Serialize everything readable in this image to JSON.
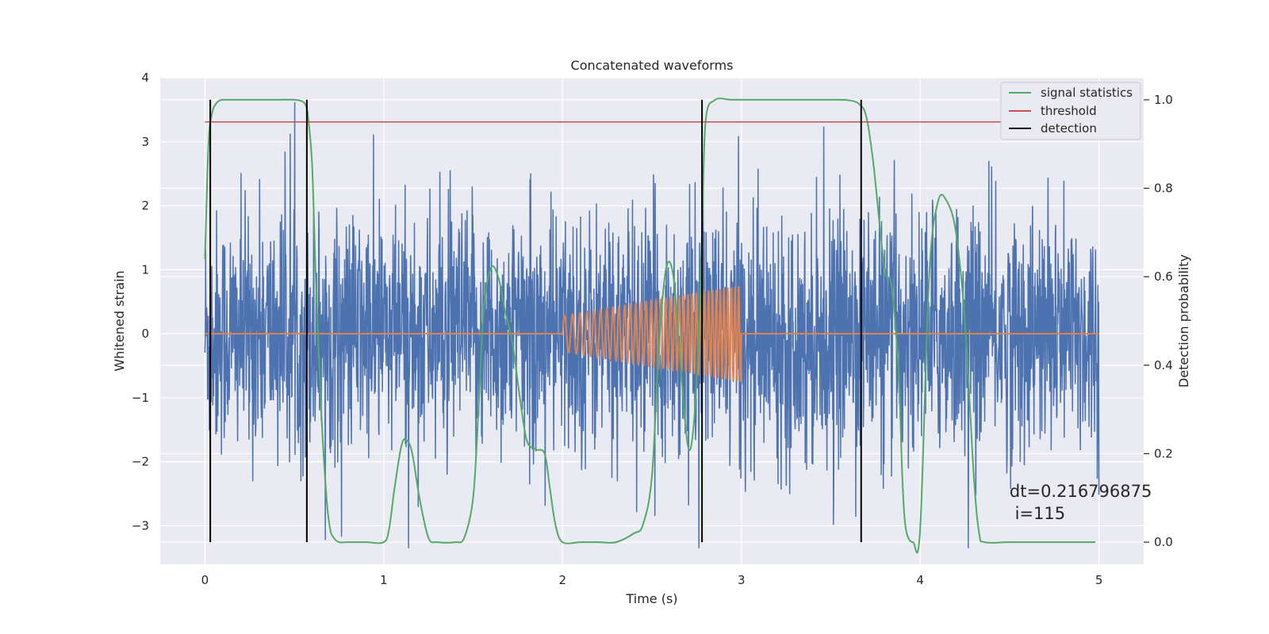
{
  "chart_data": {
    "type": "line",
    "title": "Concatenated waveforms",
    "xlabel": "Time (s)",
    "ylabel": "Whitened strain",
    "y2label": "Detection probability",
    "xlim": [
      -0.25,
      5.25
    ],
    "ylim": [
      -3.6,
      4.0
    ],
    "y2lim": [
      -0.05,
      1.05
    ],
    "xticks": [
      0,
      1,
      2,
      3,
      4,
      5
    ],
    "yticks": [
      -3,
      -2,
      -1,
      0,
      1,
      2,
      3,
      4
    ],
    "y2ticks": [
      0.0,
      0.2,
      0.4,
      0.6,
      0.8,
      1.0
    ],
    "y2ticklabels": [
      "0.0",
      "0.2",
      "0.4",
      "0.6",
      "0.8",
      "1.0"
    ],
    "background": "#eaeaf2",
    "grid": true,
    "legend_position": "top-right",
    "legend": [
      "signal statistics",
      "threshold",
      "detection"
    ],
    "colors": {
      "noise": "#4c72b0",
      "injected": "#dd8452",
      "statistics": "#55a868",
      "threshold": "#c44e52",
      "detection": "#000000"
    },
    "series": [
      {
        "key": "noise",
        "axis": "left",
        "style": "whitened strain noise",
        "x_range": [
          0,
          5
        ],
        "approx_std": 0.95,
        "approx_max": 3.65,
        "approx_min": -3.35
      },
      {
        "key": "injected",
        "axis": "left",
        "style": "chirp waveform",
        "x_range": [
          0,
          5
        ],
        "active_range": [
          2.0,
          3.0
        ],
        "amplitude_start": 0.28,
        "amplitude_end": 0.75,
        "cycles": 36
      },
      {
        "name": "signal statistics",
        "key": "statistics",
        "axis": "right",
        "x": [
          0.0,
          0.02,
          0.04,
          0.06,
          0.08,
          0.1,
          0.15,
          0.2,
          0.3,
          0.4,
          0.5,
          0.55,
          0.57,
          0.58,
          0.6,
          0.62,
          0.65,
          0.68,
          0.7,
          0.72,
          0.75,
          0.8,
          0.9,
          1.0,
          1.03,
          1.06,
          1.1,
          1.13,
          1.16,
          1.2,
          1.25,
          1.3,
          1.4,
          1.45,
          1.5,
          1.53,
          1.56,
          1.6,
          1.64,
          1.68,
          1.72,
          1.76,
          1.8,
          1.85,
          1.9,
          1.93,
          1.96,
          2.0,
          2.1,
          2.2,
          2.3,
          2.4,
          2.45,
          2.5,
          2.54,
          2.58,
          2.62,
          2.66,
          2.7,
          2.73,
          2.76,
          2.78,
          2.8,
          2.85,
          2.95,
          3.1,
          3.3,
          3.5,
          3.6,
          3.66,
          3.7,
          3.74,
          3.8,
          3.84,
          3.88,
          3.9,
          3.92,
          3.96,
          4.0,
          4.05,
          4.1,
          4.15,
          4.2,
          4.25,
          4.3,
          4.33,
          4.36,
          4.5,
          4.7,
          4.9,
          4.98
        ],
        "values": [
          0.64,
          0.9,
          0.97,
          0.99,
          0.998,
          1.0,
          1.0,
          1.0,
          1.0,
          1.0,
          1.0,
          0.995,
          0.98,
          0.95,
          0.85,
          0.6,
          0.3,
          0.1,
          0.03,
          0.01,
          0.0,
          0.0,
          0.0,
          0.0,
          0.03,
          0.12,
          0.22,
          0.23,
          0.2,
          0.1,
          0.01,
          0.0,
          0.0,
          0.01,
          0.1,
          0.3,
          0.53,
          0.62,
          0.6,
          0.52,
          0.45,
          0.33,
          0.23,
          0.21,
          0.2,
          0.12,
          0.04,
          0.0,
          0.0,
          0.0,
          0.0,
          0.02,
          0.04,
          0.15,
          0.45,
          0.62,
          0.6,
          0.4,
          0.22,
          0.25,
          0.45,
          0.7,
          0.95,
          0.999,
          1.0,
          1.0,
          1.0,
          1.0,
          0.999,
          0.99,
          0.96,
          0.85,
          0.62,
          0.58,
          0.38,
          0.15,
          0.03,
          0.0,
          0.03,
          0.6,
          0.77,
          0.77,
          0.7,
          0.5,
          0.15,
          0.02,
          0.0,
          0.0,
          0.0,
          0.0,
          0.0
        ]
      },
      {
        "name": "threshold",
        "key": "threshold",
        "axis": "right",
        "x": [
          0,
          5
        ],
        "values": [
          0.95,
          0.95
        ]
      },
      {
        "name": "detection",
        "key": "detection",
        "axis": "right",
        "x": [
          0.03,
          0.57,
          2.78,
          3.67
        ],
        "y_range": [
          0.0,
          1.0
        ]
      }
    ],
    "annotation": {
      "line1": "dt=0.216796875",
      "line2": " i=115",
      "x": 4.5,
      "y": -2.55
    }
  }
}
